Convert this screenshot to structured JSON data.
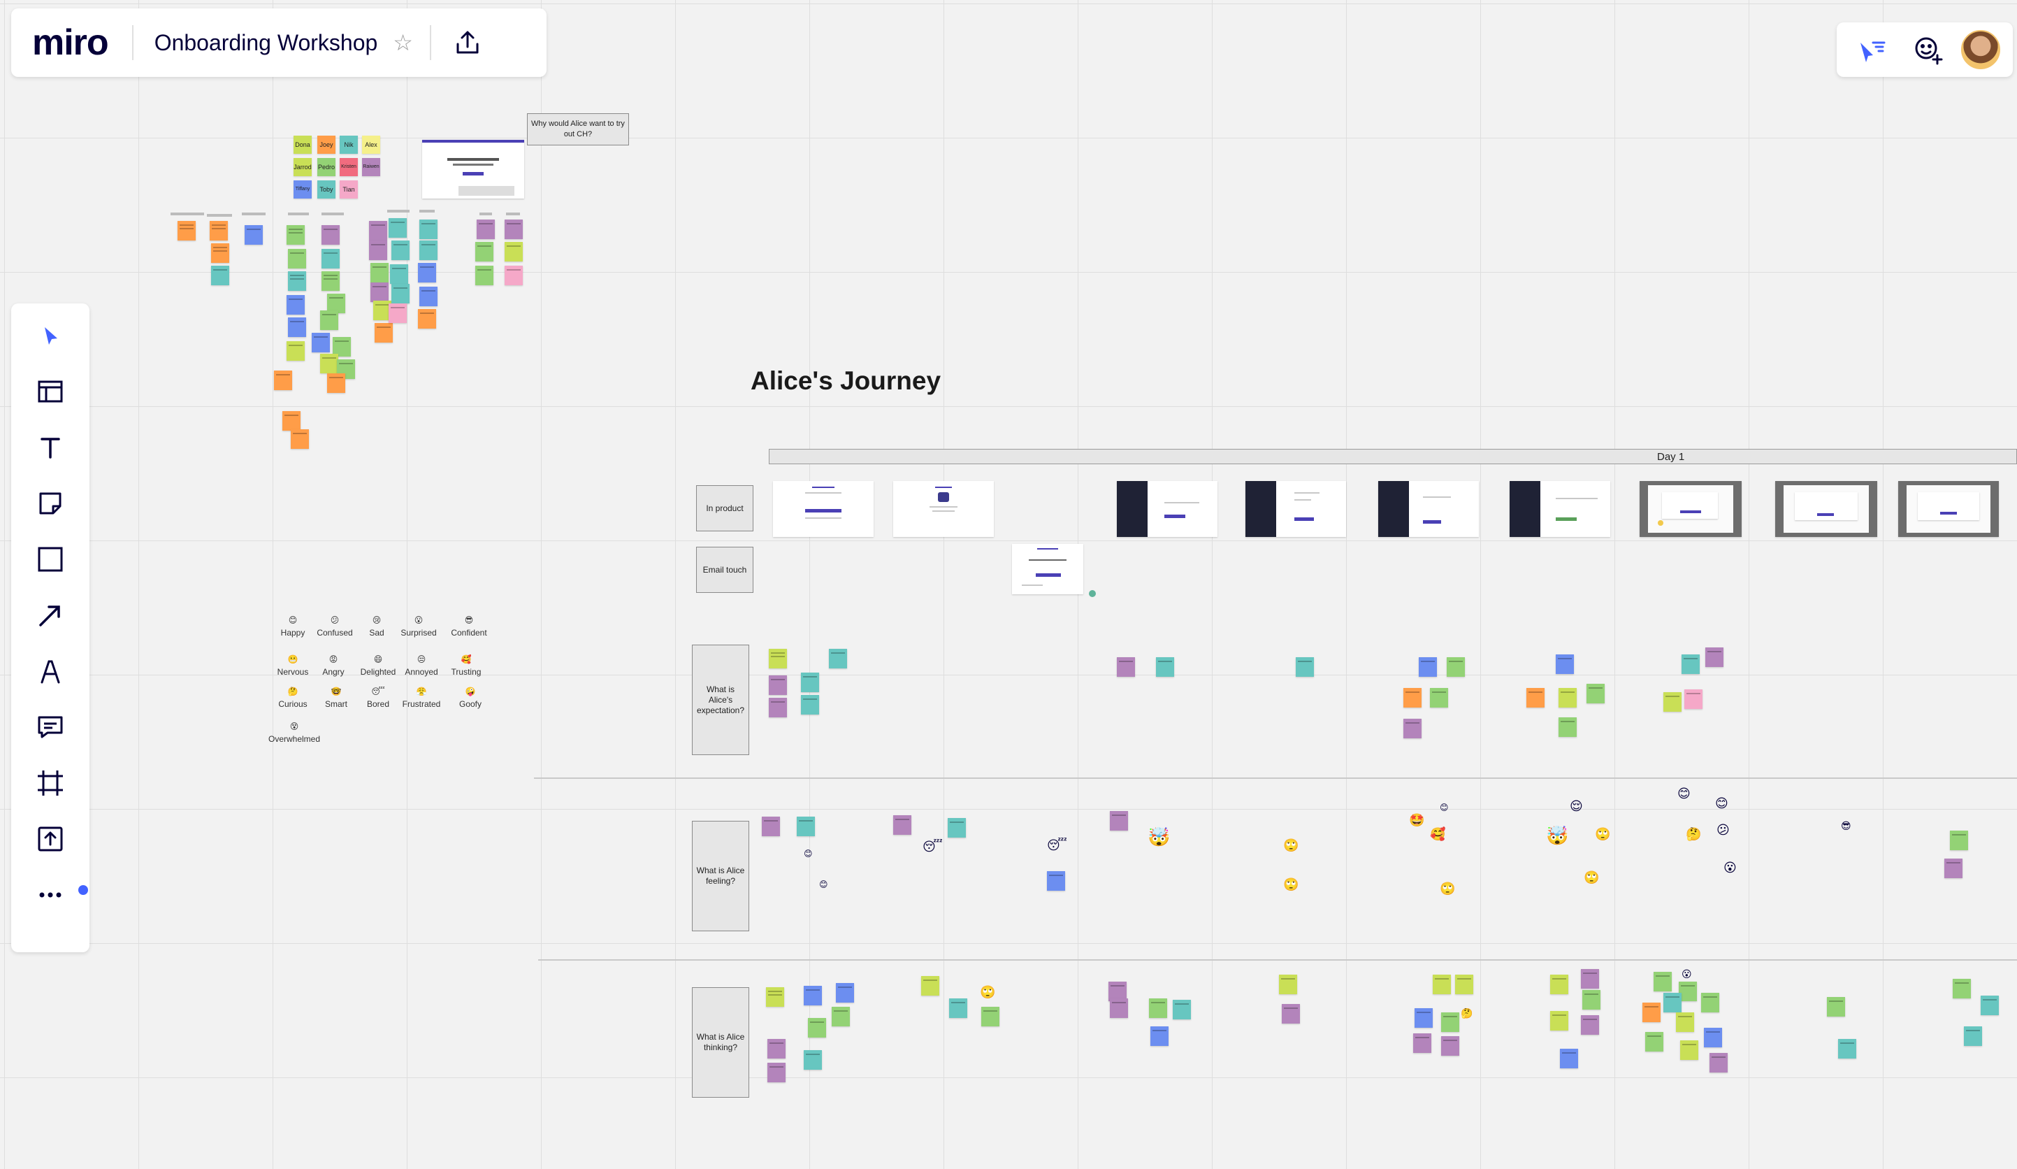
{
  "app": {
    "logo": "miro",
    "board_title": "Onboarding Workshop"
  },
  "toolbar": {
    "tools": [
      "select-icon",
      "templates-icon",
      "text-icon",
      "sticky-note-icon",
      "shape-icon",
      "connection-line-icon",
      "pen-icon",
      "comment-icon",
      "frame-icon",
      "upload-icon",
      "more-icon"
    ]
  },
  "canvas": {
    "question_card": "Why would Alice want to try out CH?",
    "journey_title": "Alice's Journey",
    "day_label": "Day 1",
    "row_labels": {
      "in_product": "In product",
      "email_touch": "Email touch",
      "expectation": "What is Alice's expectation?",
      "feeling": "What is Alice feeling?",
      "thinking": "What is Alice thinking?"
    },
    "team_names": [
      "Dona",
      "Joey",
      "Nik",
      "Alex",
      "Jarrod",
      "Pedro",
      "Kristen",
      "Raiwen",
      "Tiffany",
      "Toby",
      "Tian"
    ],
    "moods": [
      "Happy",
      "Confused",
      "Sad",
      "Surprised",
      "Confident",
      "Nervous",
      "Angry",
      "Delighted",
      "Annoyed",
      "Trusting",
      "Curious",
      "Smart",
      "Bored",
      "Frustrated",
      "Goofy",
      "Overwhelmed"
    ]
  }
}
